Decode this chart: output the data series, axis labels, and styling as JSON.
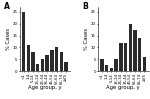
{
  "panel_A_label": "A",
  "panel_B_label": "B",
  "age_groups": [
    "<1",
    "1-4",
    "5-14",
    "15-24",
    "25-34",
    "35-44",
    "45-54",
    "55-64",
    "65-74",
    "≥75"
  ],
  "panel_A_values": [
    25,
    11,
    8,
    3,
    5,
    7,
    9,
    10,
    8,
    4
  ],
  "panel_B_values": [
    5,
    2.5,
    1.5,
    5,
    12,
    12,
    20,
    17.5,
    14,
    6
  ],
  "ylabel": "% Cases",
  "xlabel": "Age group, y",
  "ylim": [
    0,
    27
  ],
  "yticks": [
    0,
    5,
    10,
    15,
    20,
    25
  ],
  "bar_color": "#2b2b2b",
  "background_color": "#ffffff",
  "bar_width": 0.75,
  "panel_label_fontsize": 5.5,
  "axis_label_fontsize": 3.8,
  "tick_fontsize": 2.8
}
